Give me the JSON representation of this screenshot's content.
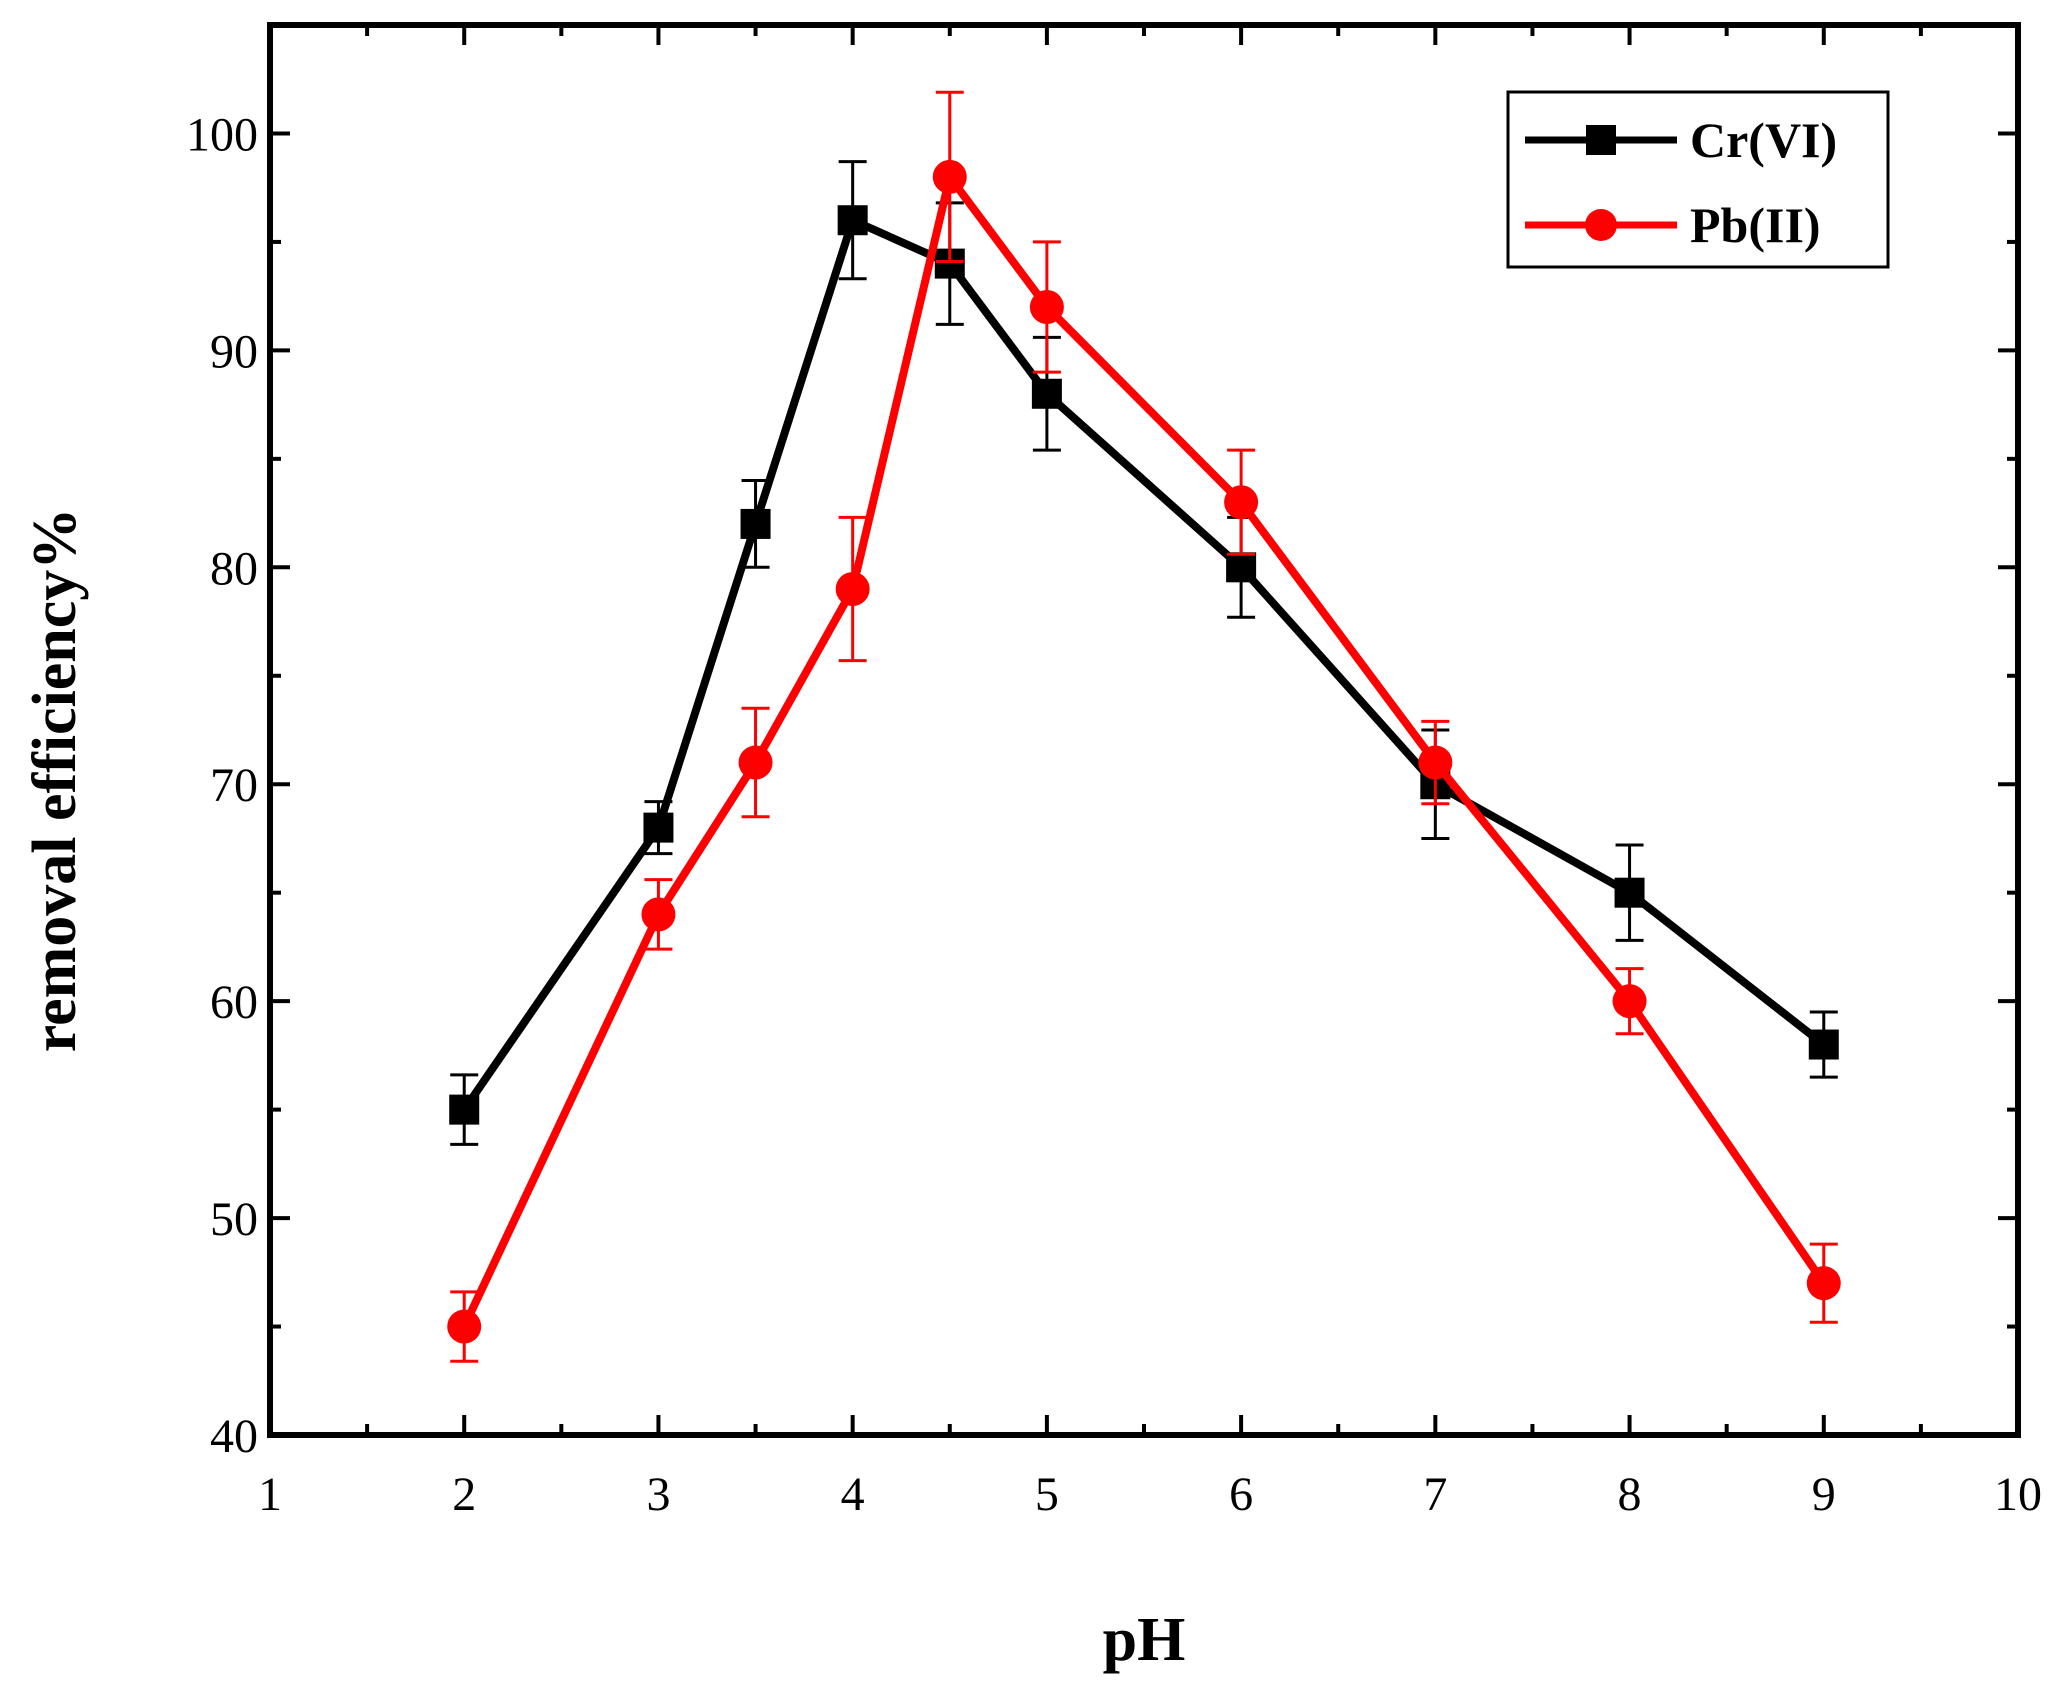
{
  "chart_data": {
    "type": "line",
    "title": "",
    "xlabel": "pH",
    "ylabel": "removal efficiency%",
    "xlim": [
      1,
      10
    ],
    "ylim": [
      40,
      105
    ],
    "x_ticks": [
      1,
      2,
      3,
      4,
      5,
      6,
      7,
      8,
      9,
      10
    ],
    "x_tick_labels": [
      "1",
      "2",
      "3",
      "4",
      "5",
      "6",
      "7",
      "8",
      "9",
      "10"
    ],
    "y_ticks": [
      40,
      50,
      60,
      70,
      80,
      90,
      100
    ],
    "y_tick_labels": [
      "40",
      "50",
      "60",
      "70",
      "80",
      "90",
      "100"
    ],
    "legend_position": "top-right",
    "grid": false,
    "series": [
      {
        "name": "Cr(VI)",
        "color": "#000000",
        "marker": "square",
        "x": [
          2,
          3,
          3.5,
          4,
          4.5,
          5,
          6,
          7,
          8,
          9
        ],
        "values": [
          55,
          68,
          82,
          96,
          94,
          88,
          80,
          70,
          65,
          58
        ],
        "error": [
          1.6,
          1.2,
          2.0,
          2.7,
          2.8,
          2.6,
          2.3,
          2.5,
          2.2,
          1.5
        ]
      },
      {
        "name": "Pb(II)",
        "color": "#ff0000",
        "marker": "circle",
        "x": [
          2,
          3,
          3.5,
          4,
          4.5,
          5,
          6,
          7,
          8,
          9
        ],
        "values": [
          45,
          64,
          71,
          79,
          98,
          92,
          83,
          71,
          60,
          47
        ],
        "error": [
          1.6,
          1.6,
          2.5,
          3.3,
          3.9,
          3.0,
          2.4,
          1.9,
          1.5,
          1.8
        ]
      }
    ]
  }
}
